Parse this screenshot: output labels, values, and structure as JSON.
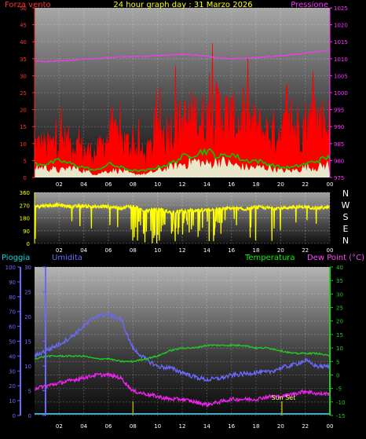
{
  "header": {
    "title": "24 hour graph day : 31 Marzo 2026",
    "left_label": "Forza vento",
    "right_label": "Pressione"
  },
  "colors": {
    "wind": "#ff0000",
    "gust_avg": "#00cc00",
    "wind_avg": "#ffffff",
    "pressure": "#ff33ff",
    "direction": "#ffff00",
    "humidity": "#6a6aff",
    "temperature": "#22cc22",
    "dewpoint": "#ee22ee",
    "rain": "#55ddff",
    "sunset": "#aaaa00",
    "title": "#ffff00",
    "wind_label": "#ff3333",
    "rain_label": "#00dddd",
    "temp_label": "#00ff00",
    "dew_label": "#ff44ff"
  },
  "chart_data": [
    {
      "type": "line",
      "name": "wind-pressure",
      "title": "24 hour graph day : 31 Marzo 2026",
      "x_ticks": [
        "02",
        "04",
        "06",
        "08",
        "10",
        "12",
        "14",
        "16",
        "18",
        "20",
        "22",
        "00"
      ],
      "left_axis": {
        "label": "Forza vento",
        "unit": "kt",
        "range": [
          0,
          50
        ],
        "ticks": [
          "0",
          "5",
          "10",
          "15",
          "20",
          "25",
          "30",
          "35",
          "40",
          "45",
          "50"
        ]
      },
      "right_axis": {
        "label": "Pressione",
        "unit": "hPa",
        "range": [
          975,
          1025
        ],
        "ticks": [
          "975",
          "980",
          "985",
          "990",
          "995",
          "1000",
          "1005",
          "1010",
          "1015",
          "1020",
          "1025"
        ]
      },
      "hours": [
        0,
        1,
        2,
        3,
        4,
        5,
        6,
        7,
        8,
        9,
        10,
        11,
        12,
        13,
        14,
        15,
        16,
        17,
        18,
        19,
        20,
        21,
        22,
        23,
        24
      ],
      "series": [
        {
          "name": "Forza vento",
          "axis": "left",
          "values": [
            10,
            9,
            11,
            10,
            8,
            7,
            12,
            11,
            9,
            6,
            12,
            14,
            16,
            18,
            17,
            20,
            17,
            16,
            15,
            13,
            14,
            15,
            16,
            17,
            16
          ]
        },
        {
          "name": "Forza vento",
          "axis": "left",
          "values": [
            4,
            4,
            5,
            4,
            3,
            2,
            4,
            3,
            2,
            2,
            3,
            4,
            6,
            7,
            8,
            6,
            7,
            5,
            5,
            4,
            3,
            3,
            4,
            5,
            6
          ]
        },
        {
          "name": "Forza vento",
          "axis": "left",
          "values": [
            3,
            3,
            2,
            3,
            2,
            1,
            2,
            2,
            1,
            1,
            2,
            3,
            4,
            5,
            4,
            5,
            4,
            3,
            3,
            3,
            2,
            2,
            3,
            3,
            4
          ]
        },
        {
          "name": "Pressione",
          "axis": "right",
          "values": [
            1009.2,
            1009.3,
            1009.4,
            1009.6,
            1009.9,
            1010.1,
            1010.3,
            1010.6,
            1010.6,
            1010.7,
            1011.0,
            1011.1,
            1011.3,
            1011.1,
            1010.8,
            1010.2,
            1010.0,
            1010.1,
            1010.3,
            1010.6,
            1010.9,
            1011.2,
            1011.6,
            1012.1,
            1012.6
          ]
        }
      ]
    },
    {
      "type": "line",
      "name": "wind-direction",
      "x_ticks": [
        "02",
        "04",
        "06",
        "08",
        "10",
        "12",
        "14",
        "16",
        "18",
        "20",
        "22",
        "00"
      ],
      "left_axis": {
        "range": [
          0,
          360
        ],
        "ticks": [
          "0",
          "90",
          "180",
          "270",
          "360"
        ]
      },
      "compass": [
        "N",
        "W",
        "S",
        "E",
        "N"
      ],
      "hours": [
        0,
        1,
        2,
        3,
        4,
        5,
        6,
        7,
        8,
        9,
        10,
        11,
        12,
        13,
        14,
        15,
        16,
        17,
        18,
        19,
        20,
        21,
        22,
        23,
        24
      ],
      "series": [
        {
          "name": "Direzione vento",
          "values": [
            262,
            268,
            270,
            260,
            265,
            258,
            262,
            250,
            265,
            230,
            245,
            220,
            230,
            235,
            235,
            245,
            250,
            240,
            255,
            250,
            250,
            255,
            258,
            250,
            255
          ]
        }
      ]
    },
    {
      "type": "line",
      "name": "rain-humidity-temp-dew",
      "x_ticks": [
        "02",
        "04",
        "06",
        "08",
        "10",
        "12",
        "14",
        "16",
        "18",
        "20",
        "22",
        "00"
      ],
      "labels": {
        "rain": "Pioggia",
        "humidity": "Umidita",
        "temperature": "Temperatura",
        "dewpoint": "Dew Point (°C)"
      },
      "annotation": "Sun Set",
      "sunset_hour": 20.1,
      "humidity_axis": {
        "range": [
          0,
          100
        ],
        "ticks": [
          "0",
          "10",
          "20",
          "30",
          "40",
          "50",
          "60",
          "70",
          "80",
          "90",
          "100"
        ]
      },
      "rain_axis": {
        "range": [
          0,
          30
        ],
        "ticks": [
          "0",
          "5",
          "10",
          "15",
          "20",
          "25",
          "30"
        ]
      },
      "temp_axis": {
        "range": [
          -15,
          40
        ],
        "ticks": [
          "-15",
          "-10",
          "-5",
          "0",
          "5",
          "10",
          "15",
          "20",
          "25",
          "30",
          "35",
          "40"
        ]
      },
      "hours": [
        0,
        1,
        2,
        3,
        4,
        5,
        6,
        7,
        8,
        9,
        10,
        11,
        12,
        13,
        14,
        15,
        16,
        17,
        18,
        19,
        20,
        21,
        22,
        23,
        24
      ],
      "series": [
        {
          "name": "Umidita",
          "axis": "humidity",
          "values": [
            40,
            44,
            48,
            53,
            60,
            67,
            68,
            65,
            45,
            38,
            33,
            32,
            29,
            26,
            24,
            25,
            27,
            28,
            29,
            29,
            32,
            34,
            37,
            33,
            33
          ]
        },
        {
          "name": "Temperatura",
          "axis": "temp",
          "values": [
            6,
            7,
            7,
            7,
            7,
            6,
            6,
            5,
            5,
            6,
            7,
            9,
            10,
            10,
            11,
            11,
            11,
            11,
            10,
            10,
            9,
            8,
            8,
            8,
            7
          ]
        },
        {
          "name": "Dew Point (°C)",
          "axis": "temp",
          "values": [
            -5,
            -4,
            -3,
            -2,
            -1,
            0,
            0,
            -1,
            -6,
            -7,
            -8,
            -9,
            -9,
            -10,
            -11,
            -10,
            -9,
            -9,
            -9,
            -8,
            -8,
            -7,
            -6,
            -7,
            -7
          ]
        },
        {
          "name": "Pioggia",
          "axis": "rain",
          "values": [
            0,
            0,
            0,
            0,
            0,
            0,
            0,
            0,
            0,
            0,
            0,
            0,
            0,
            0,
            0,
            0,
            0,
            0,
            0,
            0,
            0,
            0,
            0,
            0,
            0
          ]
        }
      ]
    }
  ]
}
